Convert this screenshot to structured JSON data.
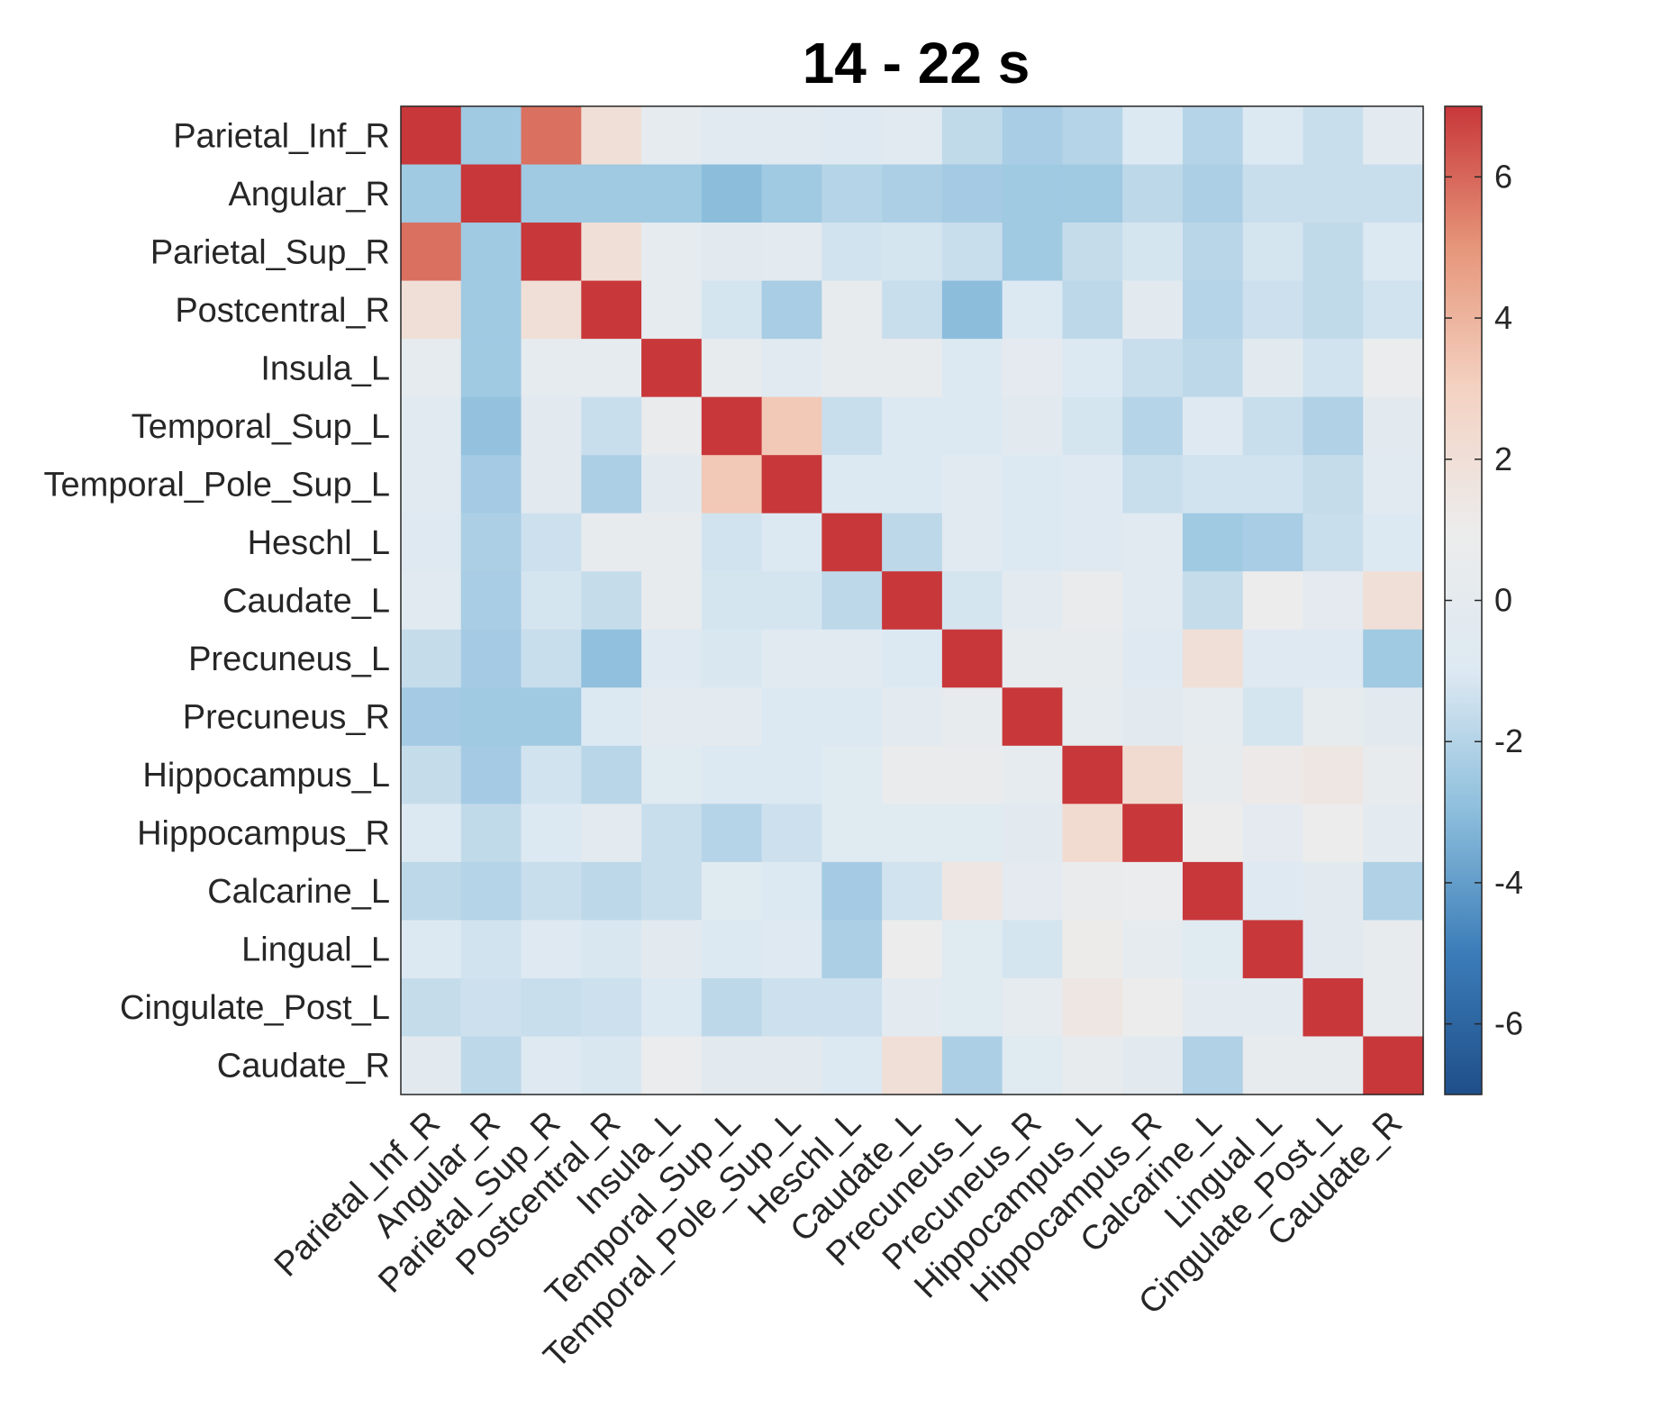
{
  "chart_data": {
    "type": "heatmap",
    "title": "14 - 22 s",
    "row_labels": [
      "Parietal_Inf_R",
      "Angular_R",
      "Parietal_Sup_R",
      "Postcentral_R",
      "Insula_L",
      "Temporal_Sup_L",
      "Temporal_Pole_Sup_L",
      "Heschl_L",
      "Caudate_L",
      "Precuneus_L",
      "Precuneus_R",
      "Hippocampus_L",
      "Hippocampus_R",
      "Calcarine_L",
      "Lingual_L",
      "Cingulate_Post_L",
      "Caudate_R"
    ],
    "col_labels": [
      "Parietal_Inf_R",
      "Angular_R",
      "Parietal_Sup_R",
      "Postcentral_R",
      "Insula_L",
      "Temporal_Sup_L",
      "Temporal_Pole_Sup_L",
      "Heschl_L",
      "Caudate_L",
      "Precuneus_L",
      "Precuneus_R",
      "Hippocampus_L",
      "Hippocampus_R",
      "Calcarine_L",
      "Lingual_L",
      "Cingulate_Post_L",
      "Caudate_R"
    ],
    "values": [
      [
        7.0,
        -2.5,
        5.8,
        2.0,
        0.0,
        -0.5,
        -0.5,
        -0.7,
        -0.5,
        -1.7,
        -2.3,
        -2.0,
        -1.0,
        -2.0,
        -1.0,
        -1.5,
        -0.2
      ],
      [
        -2.5,
        7.0,
        -2.5,
        -2.5,
        -2.5,
        -3.0,
        -2.5,
        -2.0,
        -2.2,
        -2.4,
        -2.5,
        -2.5,
        -1.8,
        -2.2,
        -1.5,
        -1.5,
        -1.5
      ],
      [
        5.8,
        -2.5,
        7.0,
        2.0,
        0.0,
        -0.3,
        -0.2,
        -1.3,
        -1.2,
        -1.5,
        -2.5,
        -1.6,
        -1.2,
        -1.9,
        -1.2,
        -1.7,
        -1.0
      ],
      [
        2.0,
        -2.5,
        2.0,
        7.0,
        0.0,
        -1.2,
        -2.3,
        0.5,
        -1.5,
        -3.0,
        -1.0,
        -1.8,
        -0.3,
        -2.0,
        -1.4,
        -1.7,
        -1.3
      ],
      [
        0.0,
        -2.5,
        0.0,
        0.0,
        7.0,
        0.5,
        -0.5,
        0.5,
        0.5,
        -1.0,
        -0.1,
        -1.0,
        -1.5,
        -1.8,
        -0.4,
        -1.3,
        0.8
      ],
      [
        -0.5,
        -2.8,
        -0.3,
        -1.5,
        0.6,
        7.0,
        3.3,
        -1.5,
        -1.0,
        -1.0,
        -0.3,
        -1.2,
        -2.0,
        -0.8,
        -1.5,
        -2.1,
        -0.4
      ],
      [
        -0.5,
        -2.4,
        -0.3,
        -2.2,
        -0.4,
        3.3,
        7.0,
        -1.0,
        -1.0,
        -0.5,
        -1.0,
        -0.7,
        -1.5,
        -1.3,
        -1.3,
        -1.6,
        -0.5
      ],
      [
        -0.8,
        -2.2,
        -1.4,
        0.5,
        0.5,
        -1.3,
        -1.0,
        7.0,
        -1.8,
        -0.5,
        -1.0,
        -0.8,
        -0.5,
        -2.5,
        -2.3,
        -1.5,
        -1.0
      ],
      [
        -0.5,
        -2.3,
        -1.2,
        -1.6,
        0.5,
        -1.2,
        -1.2,
        -1.8,
        7.0,
        -1.2,
        -0.2,
        0.6,
        -0.5,
        -1.6,
        1.0,
        -0.1,
        2.0
      ],
      [
        -1.6,
        -2.4,
        -1.5,
        -2.9,
        -0.8,
        -1.1,
        -0.5,
        -0.5,
        -1.0,
        7.0,
        0.5,
        0.5,
        -0.8,
        2.0,
        -0.7,
        -0.7,
        -2.5
      ],
      [
        -2.4,
        -2.5,
        -2.5,
        -1.0,
        -0.2,
        -0.2,
        -1.0,
        -1.0,
        -0.2,
        0.5,
        7.0,
        0.0,
        -0.3,
        0.0,
        -1.2,
        0.2,
        -0.4
      ],
      [
        -1.6,
        -2.4,
        -1.3,
        -1.9,
        -0.6,
        -1.0,
        -1.0,
        -0.6,
        0.6,
        0.6,
        0.0,
        7.0,
        2.3,
        0.5,
        1.2,
        1.5,
        0.5
      ],
      [
        -1.0,
        -1.7,
        -1.0,
        -0.2,
        -1.5,
        -2.0,
        -1.4,
        -0.6,
        -0.6,
        -0.6,
        -0.4,
        2.3,
        7.0,
        1.0,
        -0.1,
        1.0,
        -0.2
      ],
      [
        -1.8,
        -2.0,
        -1.5,
        -1.8,
        -1.5,
        -0.6,
        -1.0,
        -2.4,
        -1.3,
        1.5,
        -0.1,
        0.6,
        0.8,
        7.0,
        -0.8,
        -0.3,
        -2.1
      ],
      [
        -1.0,
        -1.3,
        -0.8,
        -1.1,
        -0.3,
        -1.0,
        -0.9,
        -2.2,
        1.0,
        -0.6,
        -1.2,
        1.1,
        0.0,
        -0.6,
        7.0,
        -0.3,
        0.3
      ],
      [
        -1.6,
        -1.4,
        -1.5,
        -1.4,
        -1.0,
        -1.8,
        -1.4,
        -1.4,
        -0.2,
        -0.6,
        0.0,
        1.5,
        1.0,
        -0.2,
        -0.2,
        7.0,
        0.5
      ],
      [
        -0.3,
        -1.8,
        -0.9,
        -1.1,
        0.7,
        -0.3,
        -0.3,
        -1.0,
        2.0,
        -2.2,
        -0.6,
        0.5,
        -0.3,
        -2.1,
        0.4,
        0.5,
        7.0
      ]
    ],
    "colorbar": {
      "range": [
        -7,
        7
      ],
      "ticks": [
        -6,
        -4,
        -2,
        0,
        2,
        4,
        6
      ],
      "tick_labels": [
        "-6",
        "-4",
        "-2",
        "0",
        "2",
        "4",
        "6"
      ]
    },
    "colormap": {
      "low": "#08306b",
      "mid": "#ececec",
      "high": "#c8373a",
      "stops": [
        "#1f4f8a",
        "#3b7cb8",
        "#8cbedc",
        "#dde9f2",
        "#ececec",
        "#f4d2c2",
        "#e6967a",
        "#c8373a"
      ]
    },
    "grid": false
  }
}
